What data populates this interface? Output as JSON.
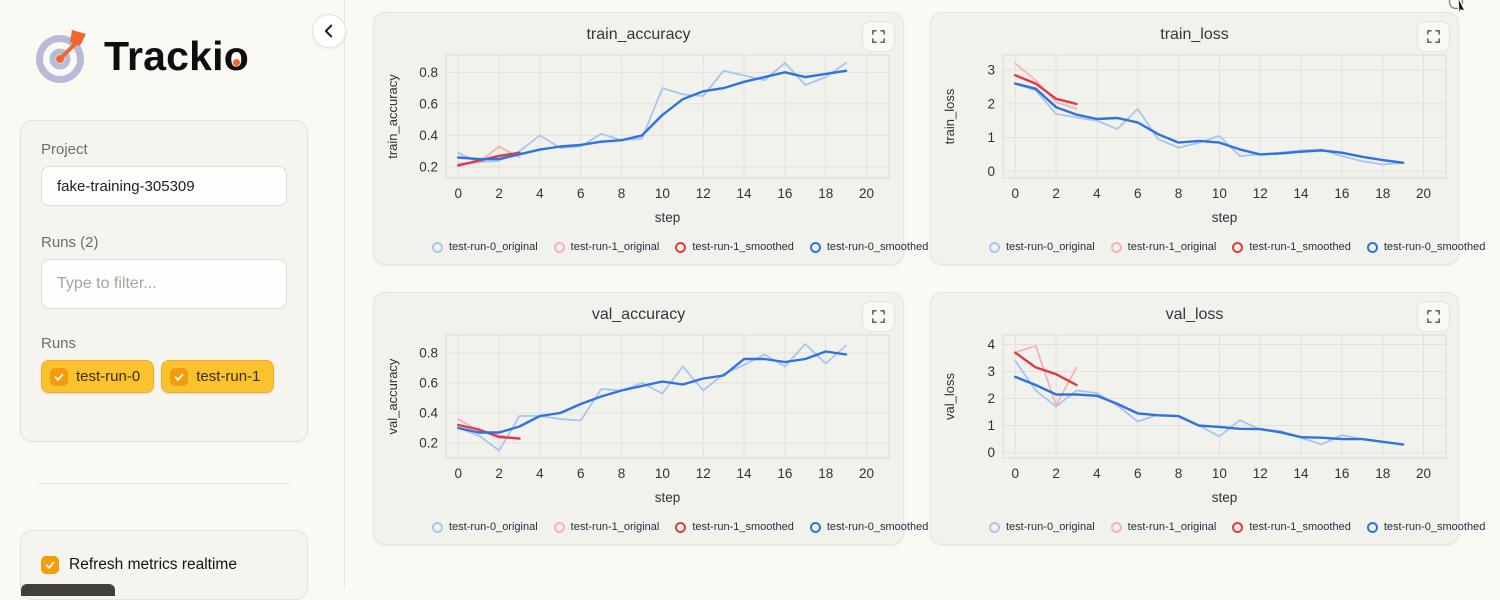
{
  "app": {
    "title": "Trackio"
  },
  "colors": {
    "accent_yellow": "#FBC230",
    "accent_yellow_border": "#EFAF1D",
    "accent_orange": "#F59B0E",
    "logo_orange": "#F2652F",
    "logo_lavender": "#B7BBD6",
    "run0_original": "#A9C4F1",
    "run0_smoothed": "#3072DF",
    "run1_original": "#F4B3B6",
    "run1_smoothed": "#DF3B40"
  },
  "icons": {
    "collapse": "chevron-left",
    "expand": "fullscreen-corners",
    "check": "checkmark",
    "logo": "target-with-dart",
    "cursor": "mouse-pointer"
  },
  "sidebar": {
    "project": {
      "label": "Project",
      "value": "fake-training-305309"
    },
    "runs_count_label": "Runs (2)",
    "filter_placeholder": "Type to filter...",
    "runs_label": "Runs",
    "runs": [
      {
        "label": "test-run-0",
        "checked": true
      },
      {
        "label": "test-run-1",
        "checked": true
      }
    ],
    "realtime": {
      "label": "Refresh metrics realtime",
      "checked": true
    }
  },
  "chart_data": [
    {
      "type": "line",
      "title": "train_accuracy",
      "xlabel": "step",
      "ylabel": "train_accuracy",
      "x_ticks": [
        0,
        2,
        4,
        6,
        8,
        10,
        12,
        14,
        16,
        18,
        20
      ],
      "xlim": [
        -0.6,
        21.1
      ],
      "y_ticks": [
        0.2,
        0.4,
        0.6,
        0.8
      ],
      "ylim": [
        0.13,
        0.91
      ],
      "grid": true,
      "legend_position": "bottom",
      "series": [
        {
          "name": "test-run-0_original",
          "color": "#A9C4F1",
          "width": 1.8,
          "values": [
            0.29,
            0.23,
            0.24,
            0.3,
            0.4,
            0.32,
            0.33,
            0.41,
            0.37,
            0.38,
            0.7,
            0.66,
            0.65,
            0.81,
            0.78,
            0.75,
            0.86,
            0.72,
            0.77,
            0.86
          ]
        },
        {
          "name": "test-run-1_original",
          "color": "#F4B3B6",
          "width": 1.8,
          "values": [
            0.22,
            0.23,
            0.33,
            0.26
          ]
        },
        {
          "name": "test-run-1_smoothed",
          "color": "#DF3B40",
          "width": 2.4,
          "values": [
            0.21,
            0.24,
            0.27,
            0.29
          ]
        },
        {
          "name": "test-run-0_smoothed",
          "color": "#3072DF",
          "width": 2.4,
          "values": [
            0.26,
            0.25,
            0.25,
            0.28,
            0.31,
            0.33,
            0.34,
            0.36,
            0.37,
            0.4,
            0.53,
            0.63,
            0.68,
            0.7,
            0.74,
            0.77,
            0.8,
            0.77,
            0.79,
            0.81
          ]
        }
      ]
    },
    {
      "type": "line",
      "title": "train_loss",
      "xlabel": "step",
      "ylabel": "train_loss",
      "x_ticks": [
        0,
        2,
        4,
        6,
        8,
        10,
        12,
        14,
        16,
        18,
        20
      ],
      "xlim": [
        -0.6,
        21.1
      ],
      "y_ticks": [
        0,
        1,
        2,
        3
      ],
      "ylim": [
        -0.2,
        3.45
      ],
      "grid": true,
      "legend_position": "bottom",
      "series": [
        {
          "name": "test-run-0_original",
          "color": "#A9C4F1",
          "width": 1.8,
          "values": [
            2.6,
            2.4,
            1.7,
            1.6,
            1.5,
            1.25,
            1.85,
            0.95,
            0.7,
            0.85,
            1.05,
            0.45,
            0.5,
            0.55,
            0.62,
            0.65,
            0.45,
            0.3,
            0.2,
            0.25
          ]
        },
        {
          "name": "test-run-1_original",
          "color": "#F4B3B6",
          "width": 1.8,
          "values": [
            3.2,
            2.7,
            2.05,
            1.85
          ]
        },
        {
          "name": "test-run-1_smoothed",
          "color": "#DF3B40",
          "width": 2.4,
          "values": [
            2.85,
            2.6,
            2.15,
            2.0
          ]
        },
        {
          "name": "test-run-0_smoothed",
          "color": "#3072DF",
          "width": 2.4,
          "values": [
            2.6,
            2.45,
            1.9,
            1.68,
            1.55,
            1.58,
            1.45,
            1.1,
            0.85,
            0.9,
            0.85,
            0.65,
            0.5,
            0.53,
            0.58,
            0.62,
            0.55,
            0.43,
            0.33,
            0.25
          ]
        }
      ]
    },
    {
      "type": "line",
      "title": "val_accuracy",
      "xlabel": "step",
      "ylabel": "val_accuracy",
      "x_ticks": [
        0,
        2,
        4,
        6,
        8,
        10,
        12,
        14,
        16,
        18,
        20
      ],
      "xlim": [
        -0.6,
        21.1
      ],
      "y_ticks": [
        0.2,
        0.4,
        0.6,
        0.8
      ],
      "ylim": [
        0.1,
        0.92
      ],
      "grid": true,
      "legend_position": "bottom",
      "series": [
        {
          "name": "test-run-0_original",
          "color": "#A9C4F1",
          "width": 1.8,
          "values": [
            0.3,
            0.25,
            0.15,
            0.38,
            0.38,
            0.36,
            0.35,
            0.56,
            0.55,
            0.6,
            0.53,
            0.71,
            0.55,
            0.66,
            0.72,
            0.79,
            0.71,
            0.86,
            0.73,
            0.85
          ]
        },
        {
          "name": "test-run-1_original",
          "color": "#F4B3B6",
          "width": 1.8,
          "values": [
            0.36,
            0.28,
            0.25,
            0.23
          ]
        },
        {
          "name": "test-run-1_smoothed",
          "color": "#DF3B40",
          "width": 2.4,
          "values": [
            0.32,
            0.29,
            0.24,
            0.23
          ]
        },
        {
          "name": "test-run-0_smoothed",
          "color": "#3072DF",
          "width": 2.4,
          "values": [
            0.3,
            0.27,
            0.27,
            0.31,
            0.38,
            0.4,
            0.46,
            0.51,
            0.55,
            0.58,
            0.61,
            0.59,
            0.63,
            0.65,
            0.76,
            0.76,
            0.74,
            0.76,
            0.81,
            0.79
          ]
        }
      ]
    },
    {
      "type": "line",
      "title": "val_loss",
      "xlabel": "step",
      "ylabel": "val_loss",
      "x_ticks": [
        0,
        2,
        4,
        6,
        8,
        10,
        12,
        14,
        16,
        18,
        20
      ],
      "xlim": [
        -0.6,
        21.1
      ],
      "y_ticks": [
        0,
        1,
        2,
        3,
        4
      ],
      "ylim": [
        -0.2,
        4.35
      ],
      "grid": true,
      "legend_position": "bottom",
      "series": [
        {
          "name": "test-run-0_original",
          "color": "#A9C4F1",
          "width": 1.8,
          "values": [
            3.4,
            2.3,
            1.7,
            2.3,
            2.2,
            1.75,
            1.15,
            1.4,
            1.35,
            1.0,
            0.6,
            1.2,
            0.85,
            0.8,
            0.55,
            0.3,
            0.65,
            0.5,
            0.4,
            0.3
          ]
        },
        {
          "name": "test-run-1_original",
          "color": "#F4B3B6",
          "width": 1.8,
          "values": [
            3.7,
            3.95,
            1.75,
            3.15
          ]
        },
        {
          "name": "test-run-1_smoothed",
          "color": "#DF3B40",
          "width": 2.4,
          "values": [
            3.7,
            3.15,
            2.9,
            2.5
          ]
        },
        {
          "name": "test-run-0_smoothed",
          "color": "#3072DF",
          "width": 2.4,
          "values": [
            2.8,
            2.5,
            2.15,
            2.15,
            2.1,
            1.8,
            1.45,
            1.38,
            1.35,
            1.0,
            0.95,
            0.88,
            0.87,
            0.75,
            0.57,
            0.55,
            0.5,
            0.5,
            0.4,
            0.3
          ]
        }
      ]
    }
  ]
}
